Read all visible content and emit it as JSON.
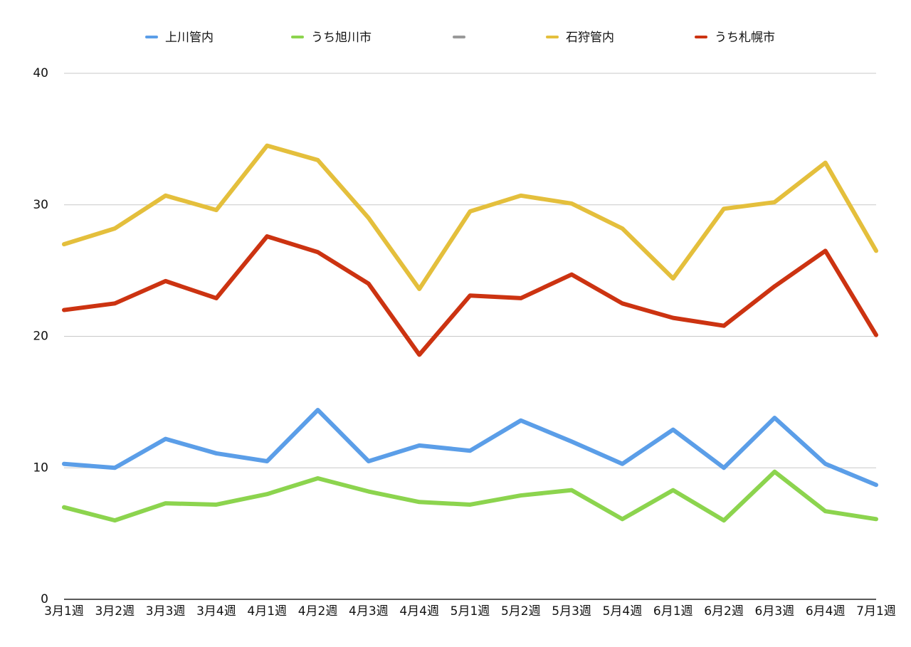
{
  "chart_data": {
    "type": "line",
    "categories": [
      "3月1週",
      "3月2週",
      "3月3週",
      "3月4週",
      "4月1週",
      "4月2週",
      "4月3週",
      "4月4週",
      "5月1週",
      "5月2週",
      "5月3週",
      "5月4週",
      "6月1週",
      "6月2週",
      "6月3週",
      "6月4週",
      "7月1週"
    ],
    "series": [
      {
        "name": "上川管内",
        "color": "#5b9ee8",
        "values": [
          10.3,
          10.0,
          12.2,
          11.1,
          10.5,
          14.4,
          10.5,
          11.7,
          11.3,
          13.6,
          12.0,
          10.3,
          12.9,
          10.0,
          13.8,
          10.3,
          8.7
        ]
      },
      {
        "name": "うち旭川市",
        "color": "#8cd44e",
        "values": [
          7.0,
          6.0,
          7.3,
          7.2,
          8.0,
          9.2,
          8.2,
          7.4,
          7.2,
          7.9,
          8.3,
          6.1,
          8.3,
          6.0,
          9.7,
          6.7,
          6.1
        ]
      },
      {
        "name": null,
        "color": "#999999",
        "values": [
          null,
          null,
          null,
          null,
          null,
          null,
          null,
          null,
          null,
          null,
          null,
          null,
          null,
          null,
          null,
          null,
          null
        ]
      },
      {
        "name": "石狩管内",
        "color": "#e4bf3c",
        "values": [
          27.0,
          28.2,
          30.7,
          29.6,
          34.5,
          33.4,
          29.0,
          23.6,
          29.5,
          30.7,
          30.1,
          28.2,
          24.4,
          29.7,
          30.2,
          33.2,
          26.5
        ]
      },
      {
        "name": "うち札幌市",
        "color": "#cc3311",
        "values": [
          22.0,
          22.5,
          24.2,
          22.9,
          27.6,
          26.4,
          24.0,
          18.6,
          23.1,
          22.9,
          24.7,
          22.5,
          21.4,
          20.8,
          23.8,
          26.5,
          20.1
        ]
      }
    ],
    "ylim": [
      0,
      40
    ],
    "yticks": [
      0,
      10,
      20,
      30,
      40
    ],
    "grid": true,
    "legend": "top"
  }
}
